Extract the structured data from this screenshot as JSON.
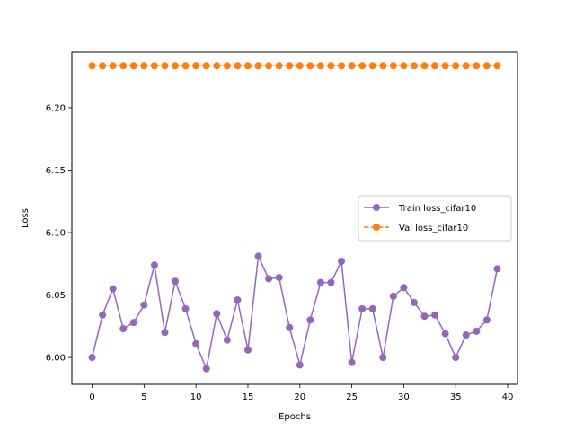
{
  "chart_data": {
    "type": "line",
    "title": "",
    "xlabel": "Epochs",
    "ylabel": "Loss",
    "xlim": [
      -1.95,
      40.95
    ],
    "ylim": [
      5.9785,
      6.2445
    ],
    "xticks": [
      0,
      5,
      10,
      15,
      20,
      25,
      30,
      35,
      40
    ],
    "yticks": [
      6.0,
      6.05,
      6.1,
      6.15,
      6.2
    ],
    "ytick_labels": [
      "6.00",
      "6.05",
      "6.10",
      "6.15",
      "6.20"
    ],
    "legend_position": "center-right",
    "grid": false,
    "x": [
      0,
      1,
      2,
      3,
      4,
      5,
      6,
      7,
      8,
      9,
      10,
      11,
      12,
      13,
      14,
      15,
      16,
      17,
      18,
      19,
      20,
      21,
      22,
      23,
      24,
      25,
      26,
      27,
      28,
      29,
      30,
      31,
      32,
      33,
      34,
      35,
      36,
      37,
      38,
      39
    ],
    "series": [
      {
        "name": "Train loss_cifar10",
        "color": "#9467bd",
        "linestyle": "solid",
        "values": [
          6.0,
          6.034,
          6.055,
          6.023,
          6.028,
          6.042,
          6.074,
          6.02,
          6.061,
          6.039,
          6.011,
          5.991,
          6.035,
          6.014,
          6.046,
          6.006,
          6.081,
          6.063,
          6.064,
          6.024,
          5.994,
          6.03,
          6.06,
          6.06,
          6.077,
          5.996,
          6.039,
          6.039,
          6.0,
          6.049,
          6.056,
          6.044,
          6.033,
          6.034,
          6.019,
          6.0,
          6.018,
          6.021,
          6.03,
          6.071
        ]
      },
      {
        "name": "Val loss_cifar10",
        "color": "#ff7f0e",
        "linestyle": "dashed",
        "values": [
          6.2335,
          6.2335,
          6.2335,
          6.2335,
          6.2335,
          6.2335,
          6.2335,
          6.2335,
          6.2335,
          6.2335,
          6.2335,
          6.2335,
          6.2335,
          6.2335,
          6.2335,
          6.2335,
          6.2335,
          6.2335,
          6.2335,
          6.2335,
          6.2335,
          6.2335,
          6.2335,
          6.2335,
          6.2335,
          6.2335,
          6.2335,
          6.2335,
          6.2335,
          6.2335,
          6.2335,
          6.2335,
          6.2335,
          6.2335,
          6.2335,
          6.2335,
          6.2335,
          6.2335,
          6.2335,
          6.2335
        ]
      }
    ]
  }
}
